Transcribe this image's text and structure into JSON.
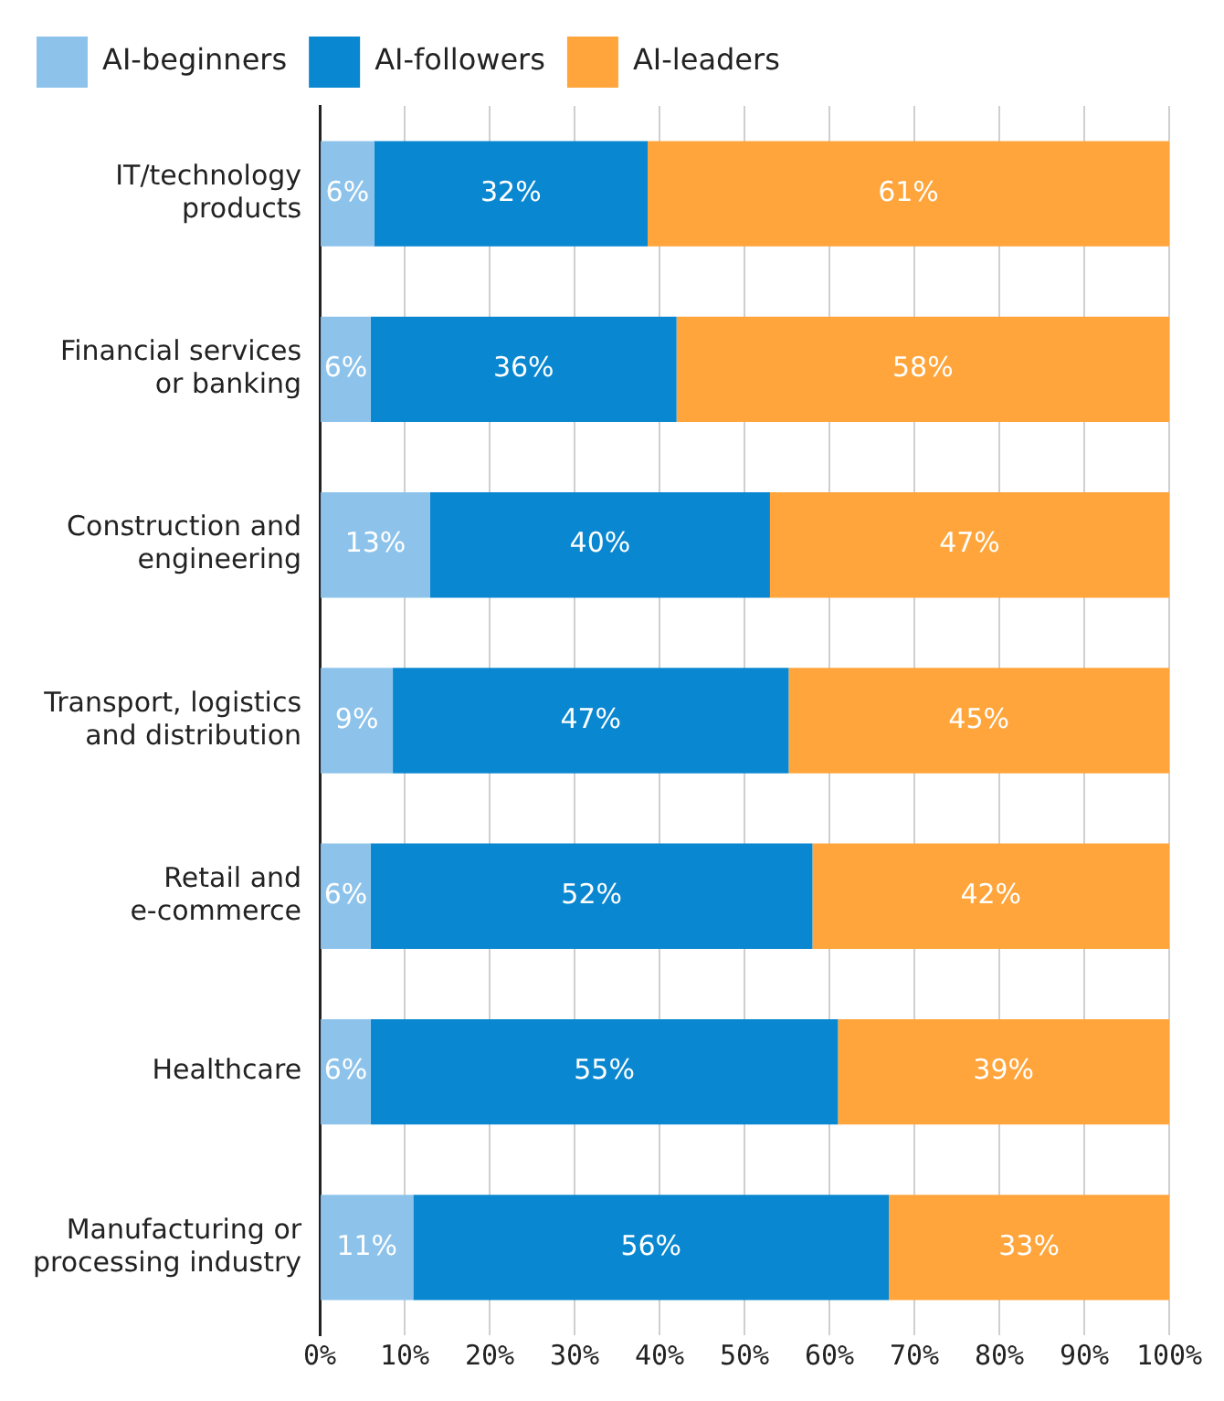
{
  "chart_data": {
    "type": "bar",
    "orientation": "horizontal",
    "stacked": true,
    "categories": [
      "IT/technology products",
      "Financial services or banking",
      "Construction and engineering",
      "Transport, logistics and distribution",
      "Retail and e-commerce",
      "Healthcare",
      "Manufacturing or processing industry"
    ],
    "series": [
      {
        "name": "AI-beginners",
        "color": "#8dc3eb",
        "values": [
          6.4,
          6,
          13,
          8.6,
          6,
          6,
          11
        ],
        "value_labels": [
          "6%",
          "6%",
          "13%",
          "9%",
          "6%",
          "6%",
          "11%"
        ]
      },
      {
        "name": "AI-followers",
        "color": "#0987d0",
        "values": [
          32.2,
          36,
          40,
          46.6,
          52,
          55,
          56
        ],
        "value_labels": [
          "32%",
          "36%",
          "40%",
          "47%",
          "52%",
          "55%",
          "56%"
        ]
      },
      {
        "name": "AI-leaders",
        "color": "#ffa53b",
        "values": [
          61.4,
          58,
          47,
          44.8,
          42,
          39,
          33
        ],
        "value_labels": [
          "61%",
          "58%",
          "47%",
          "45%",
          "42%",
          "39%",
          "33%"
        ]
      }
    ],
    "xlim": [
      0,
      100
    ],
    "xticks": [
      {
        "value": 0,
        "label": "0%"
      },
      {
        "value": 10,
        "label": "10%"
      },
      {
        "value": 20,
        "label": "20%"
      },
      {
        "value": 30,
        "label": "30%"
      },
      {
        "value": 40,
        "label": "40%"
      },
      {
        "value": 50,
        "label": "50%"
      },
      {
        "value": 60,
        "label": "60%"
      },
      {
        "value": 70,
        "label": "70%"
      },
      {
        "value": 80,
        "label": "80%"
      },
      {
        "value": 90,
        "label": "90%"
      },
      {
        "value": 100,
        "label": "100%"
      }
    ],
    "grid": "x",
    "legend": "top left"
  }
}
